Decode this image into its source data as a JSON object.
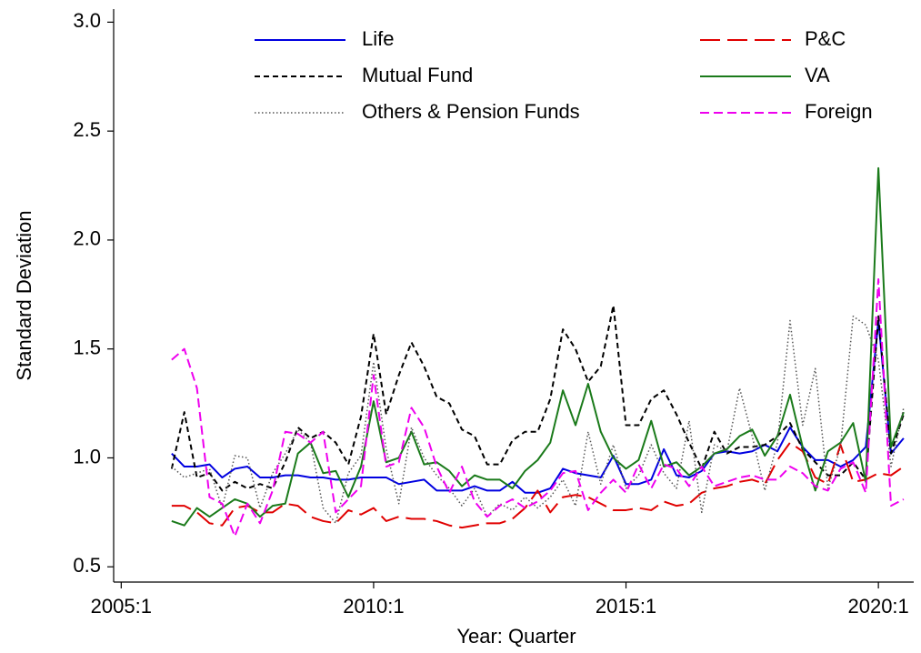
{
  "chart_data": {
    "type": "line",
    "x_label": "Year: Quarter",
    "y_label": "Standard Deviation",
    "x": [
      2006,
      2006.25,
      2006.5,
      2006.75,
      2007,
      2007.25,
      2007.5,
      2007.75,
      2008,
      2008.25,
      2008.5,
      2008.75,
      2009,
      2009.25,
      2009.5,
      2009.75,
      2010,
      2010.25,
      2010.5,
      2010.75,
      2011,
      2011.25,
      2011.5,
      2011.75,
      2012,
      2012.25,
      2012.5,
      2012.75,
      2013,
      2013.25,
      2013.5,
      2013.75,
      2014,
      2014.25,
      2014.5,
      2014.75,
      2015,
      2015.25,
      2015.5,
      2015.75,
      2016,
      2016.25,
      2016.5,
      2016.75,
      2017,
      2017.25,
      2017.5,
      2017.75,
      2018,
      2018.25,
      2018.5,
      2018.75,
      2019,
      2019.25,
      2019.5,
      2019.75,
      2020,
      2020.25,
      2020.5
    ],
    "series": [
      {
        "name": "Life",
        "color": "#0000e0",
        "style": "solid",
        "values": [
          1.02,
          0.96,
          0.96,
          0.97,
          0.91,
          0.95,
          0.96,
          0.91,
          0.91,
          0.92,
          0.92,
          0.91,
          0.91,
          0.9,
          0.9,
          0.91,
          0.91,
          0.91,
          0.88,
          0.89,
          0.9,
          0.85,
          0.85,
          0.85,
          0.87,
          0.85,
          0.85,
          0.89,
          0.84,
          0.84,
          0.86,
          0.95,
          0.93,
          0.92,
          0.91,
          1.01,
          0.88,
          0.88,
          0.9,
          1.04,
          0.92,
          0.91,
          0.94,
          1.02,
          1.03,
          1.02,
          1.03,
          1.06,
          1.03,
          1.14,
          1.05,
          0.99,
          0.99,
          0.96,
          0.99,
          1.05,
          1.63,
          1.02,
          1.09
        ]
      },
      {
        "name": "P&C",
        "color": "#e00000",
        "style": "longdash",
        "values": [
          0.78,
          0.78,
          0.75,
          0.7,
          0.69,
          0.77,
          0.78,
          0.75,
          0.75,
          0.79,
          0.78,
          0.73,
          0.71,
          0.7,
          0.76,
          0.74,
          0.77,
          0.71,
          0.73,
          0.72,
          0.72,
          0.71,
          0.69,
          0.68,
          0.69,
          0.7,
          0.7,
          0.72,
          0.77,
          0.85,
          0.75,
          0.82,
          0.83,
          0.82,
          0.79,
          0.76,
          0.76,
          0.77,
          0.76,
          0.8,
          0.78,
          0.79,
          0.84,
          0.86,
          0.87,
          0.89,
          0.9,
          0.88,
          0.99,
          1.07,
          1.03,
          0.91,
          0.88,
          1.06,
          0.89,
          0.9,
          0.93,
          0.92,
          0.96
        ]
      },
      {
        "name": "Mutual Fund",
        "color": "#000000",
        "style": "dash",
        "values": [
          0.95,
          1.21,
          0.91,
          0.93,
          0.85,
          0.89,
          0.86,
          0.88,
          0.86,
          0.98,
          1.14,
          1.09,
          1.12,
          1.07,
          0.97,
          1.19,
          1.57,
          1.2,
          1.38,
          1.53,
          1.42,
          1.28,
          1.25,
          1.13,
          1.1,
          0.97,
          0.97,
          1.08,
          1.12,
          1.12,
          1.27,
          1.59,
          1.5,
          1.35,
          1.42,
          1.7,
          1.15,
          1.15,
          1.27,
          1.31,
          1.2,
          1.07,
          0.95,
          1.12,
          1.02,
          1.05,
          1.05,
          1.06,
          1.1,
          1.16,
          1.04,
          0.98,
          0.92,
          0.92,
          0.98,
          0.9,
          1.65,
          1.02,
          1.2
        ]
      },
      {
        "name": "VA",
        "color": "#1a7a1a",
        "style": "solid",
        "values": [
          0.71,
          0.69,
          0.77,
          0.73,
          0.77,
          0.81,
          0.79,
          0.73,
          0.78,
          0.79,
          1.02,
          1.07,
          0.93,
          0.94,
          0.82,
          0.96,
          1.26,
          0.98,
          1.0,
          1.12,
          0.97,
          0.98,
          0.94,
          0.87,
          0.92,
          0.9,
          0.9,
          0.86,
          0.94,
          0.99,
          1.07,
          1.31,
          1.15,
          1.34,
          1.12,
          1.0,
          0.95,
          0.99,
          1.17,
          0.96,
          0.98,
          0.92,
          0.96,
          1.02,
          1.04,
          1.1,
          1.13,
          1.01,
          1.1,
          1.29,
          1.05,
          0.85,
          1.03,
          1.07,
          1.16,
          0.89,
          2.33,
          1.05,
          1.21
        ]
      },
      {
        "name": "Others & Pension Funds",
        "color": "#555555",
        "style": "dot",
        "values": [
          0.96,
          0.91,
          0.93,
          0.95,
          0.77,
          1.01,
          1.0,
          0.77,
          0.93,
          1.02,
          1.13,
          1.07,
          0.77,
          0.7,
          0.93,
          1.01,
          1.44,
          1.04,
          0.79,
          1.14,
          1.0,
          0.92,
          0.86,
          0.78,
          0.86,
          0.73,
          0.79,
          0.76,
          0.82,
          0.77,
          0.82,
          0.9,
          0.78,
          1.12,
          0.88,
          1.06,
          0.86,
          0.92,
          1.06,
          0.93,
          0.86,
          1.17,
          0.75,
          1.06,
          1.03,
          1.32,
          1.1,
          0.85,
          1.07,
          1.63,
          1.15,
          1.41,
          0.86,
          1.05,
          1.65,
          1.61,
          1.45,
          0.96,
          1.23
        ]
      },
      {
        "name": "Foreign",
        "color": "#ee00ee",
        "style": "shortdash",
        "values": [
          1.45,
          1.5,
          1.32,
          0.82,
          0.79,
          0.64,
          0.79,
          0.7,
          0.85,
          1.12,
          1.11,
          1.07,
          1.12,
          0.75,
          0.81,
          0.87,
          1.38,
          0.96,
          0.98,
          1.23,
          1.14,
          0.96,
          0.84,
          0.96,
          0.8,
          0.73,
          0.78,
          0.81,
          0.77,
          0.8,
          0.85,
          0.93,
          0.94,
          0.76,
          0.84,
          0.9,
          0.84,
          0.97,
          0.86,
          0.97,
          0.95,
          0.87,
          0.96,
          0.87,
          0.89,
          0.91,
          0.92,
          0.9,
          0.9,
          0.96,
          0.93,
          0.87,
          0.85,
          0.95,
          0.98,
          0.84,
          1.82,
          0.78,
          0.81
        ]
      }
    ],
    "xlim": [
      2004.85,
      2020.7
    ],
    "xticks": [
      {
        "value": 2005,
        "label": "2005:1"
      },
      {
        "value": 2010,
        "label": "2010:1"
      },
      {
        "value": 2015,
        "label": "2015:1"
      },
      {
        "value": 2020,
        "label": "2020:1"
      }
    ],
    "ylim": [
      0.43,
      3.06
    ],
    "yticks": [
      {
        "value": 0.5,
        "label": "0.5"
      },
      {
        "value": 1,
        "label": "1.0"
      },
      {
        "value": 1.5,
        "label": "1.5"
      },
      {
        "value": 2,
        "label": "2.0"
      },
      {
        "value": 2.5,
        "label": "2.5"
      },
      {
        "value": 3,
        "label": "3.0"
      }
    ],
    "grid": false,
    "legend": "top"
  }
}
